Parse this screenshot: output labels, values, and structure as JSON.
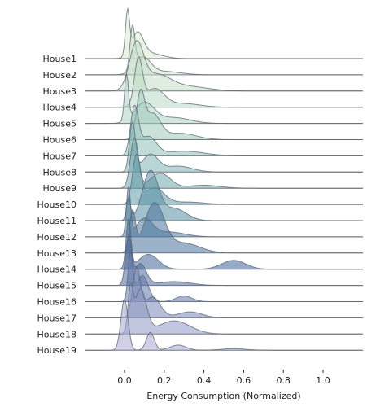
{
  "chart_data": {
    "type": "ridgeline",
    "title": "",
    "xlabel": "Energy Consumption (Normalized)",
    "ylabel": "",
    "xlim": [
      -0.2,
      1.2
    ],
    "xticks": [
      {
        "value": 0.0,
        "label": "0.0"
      },
      {
        "value": 0.2,
        "label": "0.2"
      },
      {
        "value": 0.4,
        "label": "0.4"
      },
      {
        "value": 0.6,
        "label": "0.6"
      },
      {
        "value": 0.8,
        "label": "0.8"
      },
      {
        "value": 1.0,
        "label": "1.0"
      }
    ],
    "grid": false,
    "colormap": [
      "#dbe9cf",
      "#a9d1c0",
      "#5e9ba8",
      "#3e5f97",
      "#a7a8d2"
    ],
    "series": [
      {
        "name": "House1",
        "peaks": [
          [
            0.015,
            0.01,
            1.0
          ],
          [
            0.065,
            0.03,
            0.55
          ],
          [
            0.13,
            0.06,
            0.12
          ]
        ]
      },
      {
        "name": "House2",
        "peaks": [
          [
            0.04,
            0.012,
            1.0
          ],
          [
            0.09,
            0.04,
            0.4
          ],
          [
            0.2,
            0.08,
            0.08
          ]
        ]
      },
      {
        "name": "House3",
        "peaks": [
          [
            0.06,
            0.035,
            1.0
          ],
          [
            0.16,
            0.07,
            0.35
          ],
          [
            0.32,
            0.1,
            0.1
          ]
        ]
      },
      {
        "name": "House4",
        "peaks": [
          [
            0.07,
            0.02,
            1.0
          ],
          [
            0.15,
            0.05,
            0.4
          ],
          [
            0.3,
            0.08,
            0.08
          ]
        ]
      },
      {
        "name": "House5",
        "peaks": [
          [
            0.01,
            0.01,
            0.8
          ],
          [
            0.1,
            0.05,
            0.35
          ],
          [
            0.25,
            0.08,
            0.1
          ]
        ]
      },
      {
        "name": "House6",
        "peaks": [
          [
            0.08,
            0.02,
            1.0
          ],
          [
            0.14,
            0.04,
            0.6
          ],
          [
            0.28,
            0.08,
            0.15
          ]
        ]
      },
      {
        "name": "House7",
        "peaks": [
          [
            0.05,
            0.02,
            1.0
          ],
          [
            0.12,
            0.04,
            0.4
          ],
          [
            0.3,
            0.1,
            0.1
          ]
        ]
      },
      {
        "name": "House8",
        "peaks": [
          [
            0.04,
            0.015,
            1.0
          ],
          [
            0.13,
            0.04,
            0.35
          ],
          [
            0.27,
            0.07,
            0.12
          ]
        ]
      },
      {
        "name": "House9",
        "peaks": [
          [
            0.05,
            0.02,
            1.0
          ],
          [
            0.18,
            0.05,
            0.3
          ],
          [
            0.4,
            0.08,
            0.06
          ]
        ]
      },
      {
        "name": "House10",
        "peaks": [
          [
            0.06,
            0.02,
            1.0
          ],
          [
            0.15,
            0.05,
            0.35
          ],
          [
            0.32,
            0.08,
            0.05
          ]
        ]
      },
      {
        "name": "House11",
        "peaks": [
          [
            0.02,
            0.01,
            0.45
          ],
          [
            0.13,
            0.04,
            1.0
          ],
          [
            0.25,
            0.06,
            0.25
          ]
        ]
      },
      {
        "name": "House12",
        "peaks": [
          [
            0.02,
            0.01,
            1.0
          ],
          [
            0.1,
            0.04,
            0.35
          ],
          [
            0.22,
            0.08,
            0.1
          ]
        ]
      },
      {
        "name": "House13",
        "peaks": [
          [
            0.04,
            0.015,
            0.8
          ],
          [
            0.15,
            0.05,
            1.0
          ],
          [
            0.3,
            0.08,
            0.2
          ]
        ]
      },
      {
        "name": "House14",
        "peaks": [
          [
            0.02,
            0.012,
            1.0
          ],
          [
            0.12,
            0.05,
            0.3
          ],
          [
            0.55,
            0.06,
            0.18
          ]
        ]
      },
      {
        "name": "House15",
        "peaks": [
          [
            0.02,
            0.015,
            1.0
          ],
          [
            0.08,
            0.03,
            0.45
          ],
          [
            0.25,
            0.08,
            0.08
          ]
        ]
      },
      {
        "name": "House16",
        "peaks": [
          [
            0.03,
            0.012,
            1.0
          ],
          [
            0.09,
            0.03,
            0.55
          ],
          [
            0.3,
            0.04,
            0.12
          ]
        ]
      },
      {
        "name": "House17",
        "peaks": [
          [
            0.06,
            0.02,
            0.8
          ],
          [
            0.14,
            0.04,
            0.35
          ],
          [
            0.33,
            0.06,
            0.1
          ]
        ]
      },
      {
        "name": "House18",
        "peaks": [
          [
            0.03,
            0.012,
            0.9
          ],
          [
            0.08,
            0.03,
            1.0
          ],
          [
            0.25,
            0.08,
            0.3
          ]
        ]
      },
      {
        "name": "House19",
        "peaks": [
          [
            0.0,
            0.018,
            1.0
          ],
          [
            0.13,
            0.02,
            0.35
          ],
          [
            0.27,
            0.04,
            0.1
          ],
          [
            0.55,
            0.06,
            0.03
          ]
        ]
      }
    ]
  }
}
